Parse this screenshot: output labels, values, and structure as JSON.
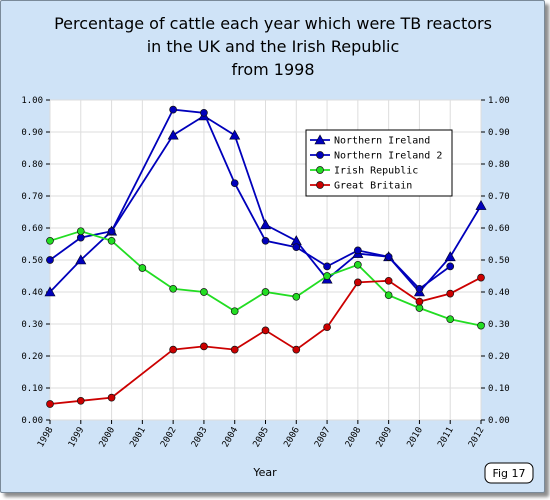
{
  "chart_data": {
    "type": "line",
    "title_lines": [
      "Percentage of cattle each year which were TB reactors",
      "in the UK and the Irish Republic",
      "from 1998"
    ],
    "xlabel": "Year",
    "ylabel": "",
    "x": [
      "1998",
      "1999",
      "2000",
      "2001",
      "2002",
      "2003",
      "2004",
      "2005",
      "2006",
      "2007",
      "2008",
      "2009",
      "2010",
      "2011",
      "2012"
    ],
    "y_ticks": [
      "0.00",
      "0.10",
      "0.20",
      "0.30",
      "0.40",
      "0.50",
      "0.60",
      "0.70",
      "0.80",
      "0.90",
      "1.00"
    ],
    "ylim": [
      0,
      1
    ],
    "grid": true,
    "legend_position": "top-right",
    "series": [
      {
        "name": "Northern Ireland",
        "color": "#0000bb",
        "marker": "triangle",
        "values": [
          0.4,
          0.5,
          0.59,
          null,
          0.89,
          0.95,
          0.89,
          0.61,
          0.56,
          0.44,
          0.52,
          0.51,
          0.4,
          0.51,
          0.67
        ]
      },
      {
        "name": "Northern Ireland 2",
        "color": "#0000bb",
        "marker": "circle",
        "values": [
          0.5,
          0.57,
          0.59,
          null,
          0.97,
          0.96,
          0.74,
          0.56,
          0.54,
          0.48,
          0.53,
          0.51,
          0.41,
          0.48,
          null
        ]
      },
      {
        "name": "Irish Republic",
        "color": "#22dd22",
        "marker": "circle",
        "values": [
          0.56,
          0.59,
          0.56,
          0.475,
          0.41,
          0.4,
          0.34,
          0.4,
          0.385,
          0.45,
          0.485,
          0.39,
          0.35,
          0.315,
          0.295
        ]
      },
      {
        "name": "Great Britain",
        "color": "#cc0000",
        "marker": "circle",
        "values": [
          0.05,
          0.06,
          0.07,
          null,
          0.22,
          0.23,
          0.22,
          0.28,
          0.22,
          0.29,
          0.43,
          0.435,
          0.37,
          0.395,
          0.445
        ]
      }
    ]
  },
  "badge": {
    "label": "Fig 17"
  },
  "colors": {
    "frame_background": "#cfe3f7",
    "plot_background": "#ffffff",
    "grid": "#dddddd"
  }
}
